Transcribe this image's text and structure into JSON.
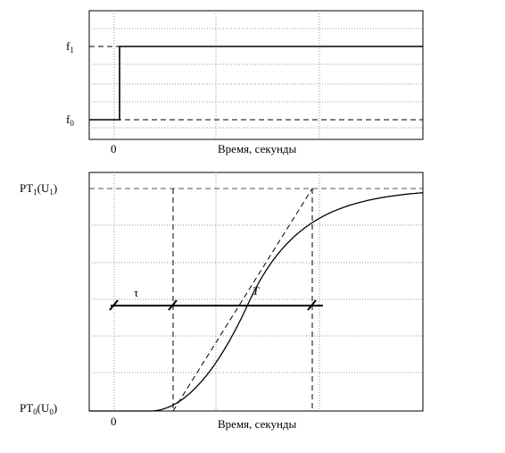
{
  "chart_data": [
    {
      "type": "line",
      "title": "",
      "xlabel": "Время, секунды",
      "ylabel": "",
      "x_tick_labels": [
        "0"
      ],
      "y_labels": {
        "high": {
          "main": "f",
          "sub": "1"
        },
        "low": {
          "main": "f",
          "sub": "0"
        }
      },
      "grid": true,
      "series": [
        {
          "points": [
            [
              -1,
              0
            ],
            [
              0,
              0
            ],
            [
              0,
              1
            ],
            [
              10,
              1
            ]
          ]
        }
      ],
      "reference_lines": [
        0,
        1
      ],
      "xlim": [
        -1,
        10
      ],
      "ylim": [
        -0.25,
        1.1
      ]
    },
    {
      "type": "line",
      "title": "",
      "xlabel": "Время, секунды",
      "ylabel": "",
      "x_tick_labels": [
        "0"
      ],
      "y_labels": {
        "high": {
          "main": "PT",
          "sub": "1",
          "tail": "(U",
          "tail_sub": "1",
          "close": ")"
        },
        "low": {
          "main": "PT",
          "sub": "0",
          "tail": "(U",
          "tail_sub": "0",
          "close": ")"
        }
      },
      "annotations": {
        "tau": "τ",
        "T": "T"
      },
      "grid": true,
      "response": {
        "delay_start": 1.0,
        "inflection_x": 4.3,
        "tau_end": 2.0,
        "t_end": 6.5
      },
      "xlim": [
        -1,
        10
      ],
      "ylim": [
        0,
        1
      ]
    }
  ],
  "colors": {
    "axis": "#000000",
    "grid": "#9a9a9a",
    "ref_line": "#2e6b2e"
  }
}
